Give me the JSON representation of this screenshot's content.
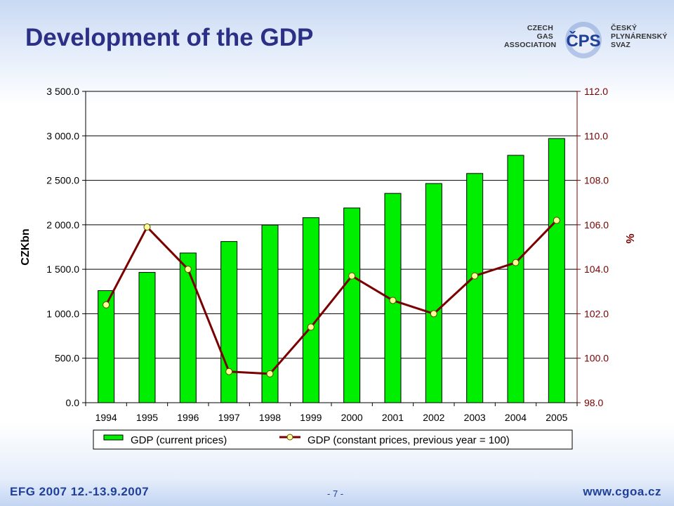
{
  "slide": {
    "title": "Development of the GDP"
  },
  "logo": {
    "left_lines": [
      "CZECH",
      "GAS",
      "ASSOCIATION"
    ],
    "mark_text": "ČPS",
    "right_lines": [
      "ČESKÝ",
      "PLYNÁRENSKÝ",
      "SVAZ"
    ]
  },
  "footer": {
    "event": "EFG 2007   12.-13.9.2007",
    "page": "- 7 -",
    "website": "www.cgoa.cz"
  },
  "colors": {
    "bar_fill": "#00ee00",
    "line": "#7a0000",
    "marker_fill": "#ffff99",
    "title": "#2b2f86",
    "footer": "#1f3f99"
  },
  "chart_data": {
    "type": "bar",
    "title": "",
    "categories": [
      "1994",
      "1995",
      "1996",
      "1997",
      "1998",
      "1999",
      "2000",
      "2001",
      "2002",
      "2003",
      "2004",
      "2005"
    ],
    "ylabel": "CZKbn",
    "ylabel_right": "%",
    "ylim": [
      0,
      3500
    ],
    "ylim_right": [
      98,
      112
    ],
    "yticks_left": [
      "0.0",
      "500.0",
      "1 000.0",
      "1 500.0",
      "2 000.0",
      "2 500.0",
      "3 000.0",
      "3 500.0"
    ],
    "yticks_right": [
      "98.0",
      "100.0",
      "102.0",
      "104.0",
      "106.0",
      "108.0",
      "110.0",
      "112.0"
    ],
    "grid": true,
    "legend_position": "bottom",
    "series": [
      {
        "name": "GDP (current prices)",
        "type": "bar",
        "axis": "left",
        "values": [
          1260,
          1465,
          1683,
          1812,
          1997,
          2080,
          2189,
          2353,
          2464,
          2577,
          2781,
          2970
        ]
      },
      {
        "name": "GDP (constant prices, previous year = 100)",
        "type": "line",
        "axis": "right",
        "values": [
          102.4,
          105.9,
          104.0,
          99.4,
          99.3,
          101.4,
          103.7,
          102.6,
          102.0,
          103.7,
          104.3,
          106.2
        ]
      }
    ]
  }
}
